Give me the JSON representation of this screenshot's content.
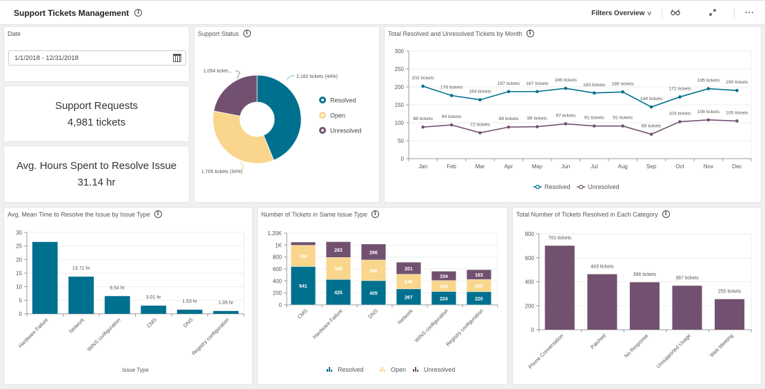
{
  "header": {
    "title": "Support Tickets Management",
    "filters_label": "Filters Overview",
    "icons": [
      "info-icon",
      "chevron-down-icon",
      "glasses-icon",
      "expand-icon",
      "more-icon"
    ]
  },
  "date_filter": {
    "label": "Date",
    "value": "1/1/2018 - 12/31/2018",
    "icon": "calendar-icon"
  },
  "kpis": {
    "support_requests": {
      "label": "Support Requests",
      "value": "4,981 tickets"
    },
    "avg_hours": {
      "label": "Avg. Hours Spent to Resolve Issue",
      "value": "31.14 hr"
    }
  },
  "colors": {
    "resolved": "#00708f",
    "open": "#f9d68b",
    "unresolved": "#725170"
  },
  "chart_data": [
    {
      "id": "support-status",
      "type": "pie",
      "title": "Support Status",
      "labels": [
        "Resolved",
        "Open",
        "Unresolved"
      ],
      "values": [
        2182,
        1705,
        1094
      ],
      "data_labels": [
        "2,182 tickets (44%)",
        "1,705 tickets (34%)",
        "1,094 ticket..."
      ],
      "legend": "right"
    },
    {
      "id": "monthly",
      "type": "line",
      "title": "Total Resolved and Unresolved Tickets by Month",
      "categories": [
        "Jan",
        "Feb",
        "Mar",
        "Apr",
        "May",
        "Jun",
        "Jul",
        "Aug",
        "Sep",
        "Oct",
        "Nov",
        "Dec"
      ],
      "series": [
        {
          "name": "Resolved",
          "values": [
            202,
            176,
            164,
            187,
            187,
            196,
            183,
            186,
            144,
            172,
            195,
            190
          ]
        },
        {
          "name": "Unresolved",
          "values": [
            88,
            94,
            72,
            88,
            89,
            97,
            91,
            91,
            68,
            103,
            108,
            105
          ]
        }
      ],
      "label_suffix": " tickets",
      "yticks": [
        "0",
        "50",
        "100",
        "150",
        "200",
        "250",
        "300"
      ],
      "ylim": [
        0,
        300
      ],
      "grid": true,
      "legend": "bottom"
    },
    {
      "id": "mean-time",
      "type": "bar",
      "title": "Avg. Mean Time to Resolve the Issue by Issue Type",
      "categories": [
        "Hardware Failure",
        "Network",
        "WINS configuration",
        "CMS",
        "DNS",
        "Registry configuration"
      ],
      "values": [
        26.5,
        13.71,
        6.54,
        3.01,
        1.53,
        1.05
      ],
      "data_labels": [
        "",
        "13.71 hr",
        "6.54 hr",
        "3.01 hr",
        "1.53 hr",
        "1.05 hr"
      ],
      "xlabel": "Issue Type",
      "yticks": [
        "0",
        "5",
        "10",
        "15",
        "20",
        "25",
        "30"
      ],
      "ylim": [
        0,
        30
      ],
      "grid": true
    },
    {
      "id": "same-issue",
      "type": "bar",
      "stacked": true,
      "title": "Number of Tickets in Same Issue Type",
      "categories": [
        "CMS",
        "Hardware Failure",
        "DNS",
        "Network",
        "WINS configuration",
        "Registry configuration"
      ],
      "series": [
        {
          "name": "Resolved",
          "values": [
            641,
            425,
            405,
            267,
            224,
            220
          ],
          "labels": [
            "641",
            "425",
            "405",
            "267",
            "224",
            "220"
          ]
        },
        {
          "name": "Open",
          "values": [
            356,
            368,
            346,
            246,
            184,
            205
          ],
          "labels": [
            "356",
            "368",
            "346",
            "246",
            "184",
            "205"
          ]
        },
        {
          "name": "Unresolved",
          "values": [
            53,
            263,
            266,
            201,
            154,
            163
          ],
          "labels": [
            "",
            "263",
            "266",
            "201",
            "154",
            "163"
          ]
        }
      ],
      "yticks": [
        "0",
        "200",
        "400",
        "600",
        "800",
        "1K",
        "1.20K"
      ],
      "ylim": [
        0,
        1200
      ],
      "grid": true,
      "legend": "bottom"
    },
    {
      "id": "category",
      "type": "bar",
      "title": "Total Number of Tickets Resolved in Each Category",
      "categories": [
        "Phone Conversation",
        "Patched",
        "No Response",
        "Unsupported Usage",
        "Web Meeting"
      ],
      "values": [
        701,
        463,
        396,
        367,
        255
      ],
      "data_labels": [
        "701 tickets",
        "463 tickets",
        "396 tickets",
        "367 tickets",
        "255 tickets"
      ],
      "yticks": [
        "0",
        "200",
        "400",
        "600",
        "800"
      ],
      "ylim": [
        0,
        800
      ],
      "grid": true
    }
  ]
}
